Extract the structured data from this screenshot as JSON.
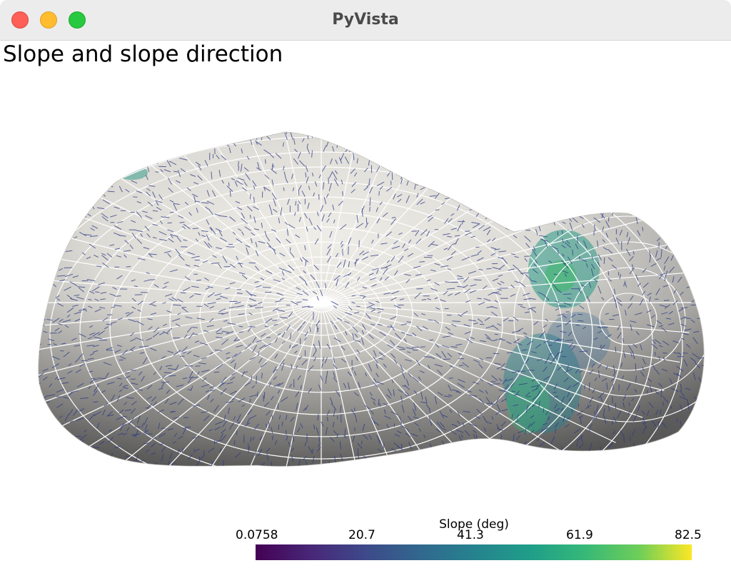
{
  "window": {
    "title": "PyVista"
  },
  "plot": {
    "title": "Slope and slope direction",
    "surface_color": "#e6e4de",
    "arrow_color": "#2b3a86",
    "grid_color": "#ffffff"
  },
  "colorbar": {
    "title": "Slope (deg)",
    "ticks": [
      "0.0758",
      "20.7",
      "41.3",
      "61.9",
      "82.5"
    ],
    "colormap": "viridis",
    "range": [
      0.0758,
      82.5
    ]
  }
}
